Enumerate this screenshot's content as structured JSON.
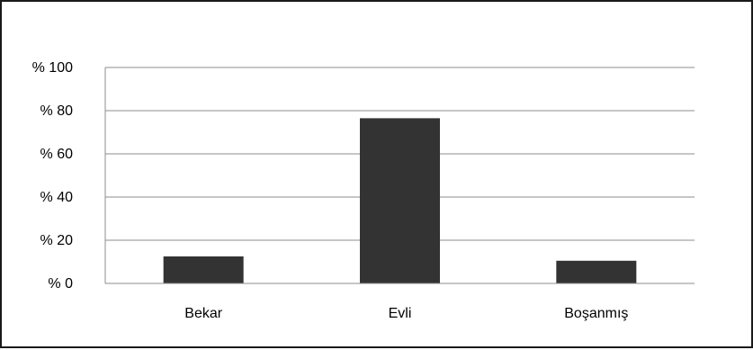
{
  "chart_data": {
    "type": "bar",
    "title": "",
    "xlabel": "",
    "ylabel": "",
    "categories": [
      "Bekar",
      "Evli",
      "Boşanmış"
    ],
    "values": [
      12.5,
      76.5,
      10.5
    ],
    "ylim": [
      0,
      100
    ],
    "yticks": [
      0,
      20,
      40,
      60,
      80,
      100
    ],
    "ytick_labels": [
      "% 0",
      "% 20",
      "% 40",
      "% 60",
      "% 80",
      "% 100"
    ],
    "grid": true,
    "legend": "none",
    "colors": {
      "bar": "#333333",
      "grid": "#8c8c8c",
      "axis": "#8c8c8c",
      "border": "#1a1a1a"
    }
  }
}
